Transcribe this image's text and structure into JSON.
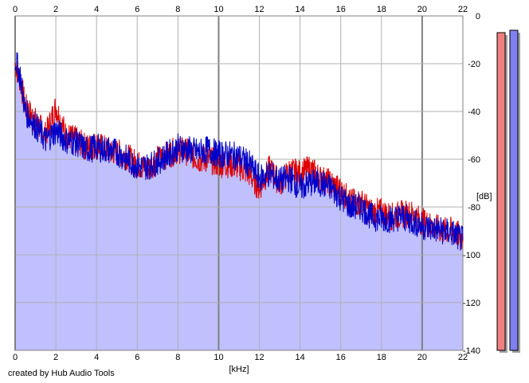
{
  "chart_data": {
    "type": "area",
    "xlabel": "[kHz]",
    "ylabel": "[dB]",
    "xlim": [
      0,
      22
    ],
    "ylim": [
      -140,
      0
    ],
    "x_ticks": [
      "0",
      "2",
      "4",
      "6",
      "8",
      "10",
      "12",
      "14",
      "16",
      "18",
      "20",
      "22"
    ],
    "y_ticks": [
      "0",
      "-20",
      "-40",
      "-60",
      "-80",
      "-100",
      "-120",
      "-140"
    ],
    "grid": true,
    "series": [
      {
        "color": "#e00000",
        "x": [
          0,
          0.25,
          0.5,
          1,
          1.5,
          2,
          2.5,
          3,
          3.5,
          4,
          4.5,
          5,
          5.5,
          6,
          6.5,
          7,
          7.5,
          8,
          8.5,
          9,
          9.5,
          10,
          10.5,
          11,
          11.5,
          12,
          12.5,
          13,
          13.5,
          14,
          14.5,
          15,
          15.5,
          16,
          16.5,
          17,
          17.5,
          18,
          18.5,
          19,
          19.5,
          20,
          20.5,
          21,
          21.5,
          22
        ],
        "values": [
          -20,
          -27,
          -38,
          -44,
          -50,
          -38,
          -50,
          -52,
          -55,
          -54,
          -56,
          -57,
          -59,
          -62,
          -64,
          -60,
          -58,
          -56,
          -57,
          -60,
          -60,
          -62,
          -62,
          -63,
          -66,
          -72,
          -64,
          -70,
          -65,
          -66,
          -64,
          -68,
          -70,
          -73,
          -78,
          -78,
          -82,
          -82,
          -84,
          -83,
          -83,
          -86,
          -88,
          -90,
          -90,
          -93
        ]
      },
      {
        "color": "#0000c8",
        "x": [
          0,
          0.25,
          0.5,
          1,
          1.5,
          2,
          2.5,
          3,
          3.5,
          4,
          4.5,
          5,
          5.5,
          6,
          6.5,
          7,
          7.5,
          8,
          8.5,
          9,
          9.5,
          10,
          10.5,
          11,
          11.5,
          12,
          12.5,
          13,
          13.5,
          14,
          14.5,
          15,
          15.5,
          16,
          16.5,
          17,
          17.5,
          18,
          18.5,
          19,
          19.5,
          20,
          20.5,
          21,
          21.5,
          22
        ],
        "values": [
          -18,
          -25,
          -40,
          -46,
          -52,
          -48,
          -52,
          -53,
          -56,
          -55,
          -56,
          -57,
          -60,
          -63,
          -63,
          -61,
          -58,
          -55,
          -56,
          -57,
          -56,
          -58,
          -58,
          -59,
          -62,
          -68,
          -66,
          -69,
          -68,
          -72,
          -70,
          -70,
          -72,
          -76,
          -80,
          -80,
          -84,
          -85,
          -85,
          -84,
          -86,
          -88,
          -89,
          -90,
          -91,
          -94
        ]
      }
    ],
    "fill_color": "#c0c0ff",
    "level_meters": [
      {
        "channel": "left",
        "color": "#f08080",
        "level_db": -7
      },
      {
        "channel": "right",
        "color": "#8080f0",
        "level_db": -6
      }
    ]
  },
  "footer": {
    "credit": "created by Hub Audio Tools"
  }
}
